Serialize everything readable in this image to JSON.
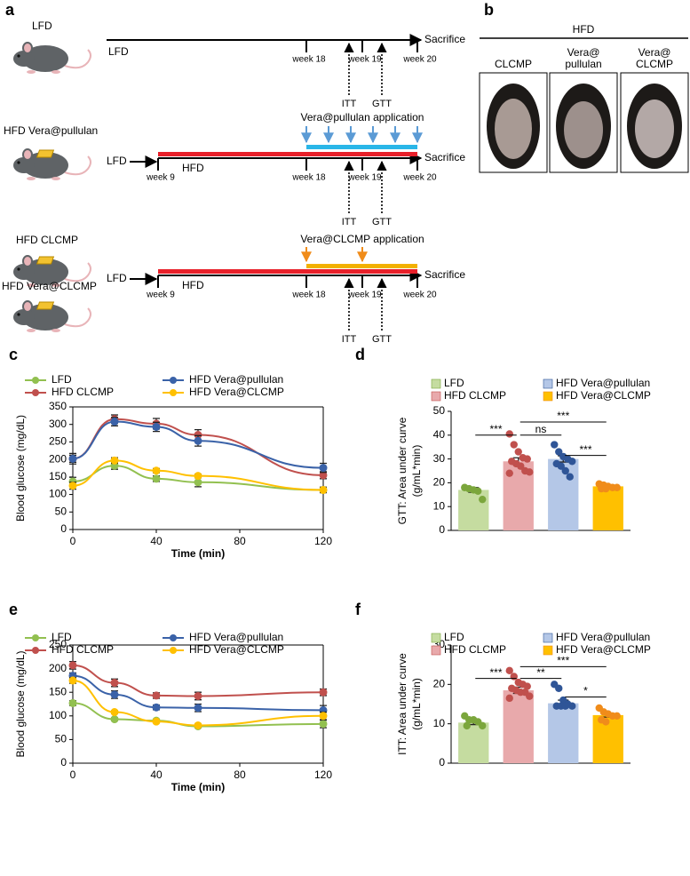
{
  "panel_a": {
    "label": "a",
    "mice": [
      "LFD",
      "HFD Vera@pullulan",
      "HFD CLCMP",
      "HFD Vera@CLCMP"
    ],
    "timeline": {
      "start": "LFD",
      "diet": "HFD",
      "end": "Sacrifice",
      "weeks": [
        "week 9",
        "week 18",
        "week 19",
        "week 20"
      ],
      "tests": [
        "ITT",
        "GTT"
      ]
    },
    "applications": [
      "Vera@pullulan application",
      "Vera@CLCMP application"
    ]
  },
  "panel_b": {
    "label": "b",
    "group": "HFD",
    "images": [
      [
        "CLCMP"
      ],
      [
        "Vera@",
        "pullulan"
      ],
      [
        "Vera@",
        "CLCMP"
      ]
    ]
  },
  "chart_data": [
    {
      "type": "line",
      "panel": "c",
      "xlabel": "Time (min)",
      "ylabel": [
        "Blood glucose (mg/dL)"
      ],
      "x": [
        0,
        20,
        40,
        60,
        120
      ],
      "xlim": [
        0,
        120
      ],
      "xticks": [
        0,
        40,
        80,
        120
      ],
      "ylim": [
        0,
        350
      ],
      "yticks": [
        0,
        50,
        100,
        150,
        200,
        250,
        300,
        350
      ],
      "series": [
        {
          "name": "LFD",
          "color": "#92c050",
          "values": [
            137,
            182,
            145,
            135,
            113
          ],
          "errors": [
            12,
            10,
            8,
            13,
            5
          ]
        },
        {
          "name": "HFD CLCMP",
          "color": "#c0504d",
          "values": [
            202,
            315,
            302,
            270,
            155
          ],
          "errors": [
            15,
            12,
            15,
            15,
            10
          ]
        },
        {
          "name": "HFD Vera@pullulan",
          "color": "#3a62a8",
          "values": [
            202,
            308,
            293,
            253,
            176
          ],
          "errors": [
            10,
            12,
            13,
            15,
            13
          ]
        },
        {
          "name": "HFD Vera@CLCMP",
          "color": "#ffc000",
          "values": [
            125,
            197,
            168,
            153,
            113
          ],
          "errors": [
            10,
            8,
            6,
            5,
            8
          ]
        }
      ]
    },
    {
      "type": "bar",
      "panel": "d",
      "ylabel": [
        "GTT: Area under curve",
        "(g/mL*min)"
      ],
      "categories": [
        "LFD",
        "HFD CLCMP",
        "HFD Vera@pullulan",
        "HFD Vera@CLCMP"
      ],
      "values": [
        17,
        29,
        30,
        18.5
      ],
      "errors": [
        1,
        1.5,
        1.3,
        0.4
      ],
      "colors": [
        "#c5dca0",
        "#e8a9ab",
        "#b4c7e7",
        "#ffc000"
      ],
      "point_colors": [
        "#7ba63c",
        "#c0504d",
        "#2f5597",
        "#f08c1a"
      ],
      "points": [
        [
          18,
          17.5,
          17,
          16.5,
          13
        ],
        [
          40.5,
          36,
          33,
          30.5,
          30,
          29,
          28,
          27,
          25,
          24.5,
          24
        ],
        [
          36,
          33,
          31,
          30,
          29,
          28,
          27,
          25,
          22.5
        ],
        [
          19.5,
          19,
          18.5,
          18,
          18,
          17.5,
          17.5
        ]
      ],
      "ylim": [
        0,
        50
      ],
      "yticks": [
        0,
        10,
        20,
        30,
        40,
        50
      ],
      "annotations": [
        {
          "text": "***",
          "from": 0,
          "to": 1
        },
        {
          "text": "ns",
          "from": 1,
          "to": 2
        },
        {
          "text": "***",
          "from": 1,
          "to": 3
        },
        {
          "text": "***",
          "from": 2,
          "to": 3
        }
      ]
    },
    {
      "type": "line",
      "panel": "e",
      "xlabel": "Time (min)",
      "ylabel": [
        "Blood glucose (mg/dL)"
      ],
      "x": [
        0,
        20,
        40,
        60,
        120
      ],
      "xlim": [
        0,
        120
      ],
      "xticks": [
        0,
        40,
        80,
        120
      ],
      "ylim": [
        0,
        250
      ],
      "yticks": [
        0,
        50,
        100,
        150,
        200,
        250
      ],
      "series": [
        {
          "name": "LFD",
          "color": "#92c050",
          "values": [
            127,
            93,
            90,
            78,
            83
          ],
          "errors": [
            5,
            3,
            3,
            3,
            8
          ]
        },
        {
          "name": "HFD CLCMP",
          "color": "#c0504d",
          "values": [
            207,
            170,
            143,
            142,
            150
          ],
          "errors": [
            8,
            8,
            6,
            8,
            7
          ]
        },
        {
          "name": "HFD Vera@pullulan",
          "color": "#3a62a8",
          "values": [
            185,
            145,
            118,
            117,
            112
          ],
          "errors": [
            6,
            8,
            5,
            8,
            10
          ]
        },
        {
          "name": "HFD Vera@CLCMP",
          "color": "#ffc000",
          "values": [
            175,
            108,
            88,
            80,
            100
          ],
          "errors": [
            6,
            3,
            3,
            3,
            8
          ]
        }
      ]
    },
    {
      "type": "bar",
      "panel": "f",
      "ylabel": [
        "ITT: Area under curve",
        "(g/mL*min)"
      ],
      "categories": [
        "LFD",
        "HFD CLCMP",
        "HFD Vera@pullulan",
        "HFD Vera@CLCMP"
      ],
      "values": [
        10.3,
        18.5,
        15.2,
        12.2
      ],
      "errors": [
        0.5,
        0.8,
        0.8,
        0.5
      ],
      "colors": [
        "#c5dca0",
        "#e8a9ab",
        "#b4c7e7",
        "#ffc000"
      ],
      "point_colors": [
        "#7ba63c",
        "#c0504d",
        "#2f5597",
        "#f08c1a"
      ],
      "points": [
        [
          12,
          11,
          11,
          10.5,
          9.5,
          9.5
        ],
        [
          23.5,
          22,
          20.5,
          20,
          19.5,
          19,
          18.5,
          18,
          18,
          17,
          16.5
        ],
        [
          20,
          19,
          16,
          15,
          14.5,
          14.5,
          14.5,
          14.5
        ],
        [
          14,
          13,
          12.5,
          12,
          12,
          11,
          10.5
        ]
      ],
      "ylim": [
        0,
        30
      ],
      "yticks": [
        0,
        10,
        20,
        30
      ],
      "annotations": [
        {
          "text": "***",
          "from": 0,
          "to": 1
        },
        {
          "text": "**",
          "from": 1,
          "to": 2
        },
        {
          "text": "***",
          "from": 1,
          "to": 3
        },
        {
          "text": "*",
          "from": 2,
          "to": 3
        }
      ]
    }
  ]
}
